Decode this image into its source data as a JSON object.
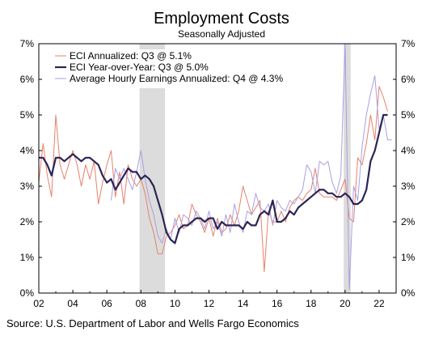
{
  "chart_data": {
    "type": "line",
    "title": "Employment Costs",
    "subtitle": "Seasonally Adjusted",
    "source": "Source: U.S. Department of Labor and Wells Fargo Economics",
    "xlim": [
      2002.0,
      2023.0
    ],
    "ylim": [
      0,
      7
    ],
    "x_ticks": [
      {
        "value": 2002,
        "label": "02"
      },
      {
        "value": 2004,
        "label": "04"
      },
      {
        "value": 2006,
        "label": "06"
      },
      {
        "value": 2008,
        "label": "08"
      },
      {
        "value": 2010,
        "label": "10"
      },
      {
        "value": 2012,
        "label": "12"
      },
      {
        "value": 2014,
        "label": "14"
      },
      {
        "value": 2016,
        "label": "16"
      },
      {
        "value": 2018,
        "label": "18"
      },
      {
        "value": 2020,
        "label": "20"
      },
      {
        "value": 2022,
        "label": "22"
      }
    ],
    "y_ticks": [
      {
        "value": 0,
        "label": "0%"
      },
      {
        "value": 1,
        "label": "1%"
      },
      {
        "value": 2,
        "label": "2%"
      },
      {
        "value": 3,
        "label": "3%"
      },
      {
        "value": 4,
        "label": "4%"
      },
      {
        "value": 5,
        "label": "5%"
      },
      {
        "value": 6,
        "label": "6%"
      },
      {
        "value": 7,
        "label": "7%"
      }
    ],
    "recessions": [
      {
        "start": 2007.92,
        "end": 2009.42
      },
      {
        "start": 2019.92,
        "end": 2020.33
      }
    ],
    "legend": {
      "position": "top-left"
    },
    "colors": {
      "eci_annualized": "#e8806a",
      "eci_yoy": "#2b2456",
      "ahe": "#a99fe0",
      "recession": "#dcdcdc"
    },
    "series": [
      {
        "name": "ECI Annualized: Q3 @ 5.1%",
        "key": "eci_annualized",
        "x": [
          2002.0,
          2002.25,
          2002.5,
          2002.75,
          2003.0,
          2003.25,
          2003.5,
          2003.75,
          2004.0,
          2004.25,
          2004.5,
          2004.75,
          2005.0,
          2005.25,
          2005.5,
          2005.75,
          2006.0,
          2006.25,
          2006.5,
          2006.75,
          2007.0,
          2007.25,
          2007.5,
          2007.75,
          2008.0,
          2008.25,
          2008.5,
          2008.75,
          2009.0,
          2009.25,
          2009.5,
          2009.75,
          2010.0,
          2010.25,
          2010.5,
          2010.75,
          2011.0,
          2011.25,
          2011.5,
          2011.75,
          2012.0,
          2012.25,
          2012.5,
          2012.75,
          2013.0,
          2013.25,
          2013.5,
          2013.75,
          2014.0,
          2014.25,
          2014.5,
          2014.75,
          2015.0,
          2015.25,
          2015.5,
          2015.75,
          2016.0,
          2016.25,
          2016.5,
          2016.75,
          2017.0,
          2017.25,
          2017.5,
          2017.75,
          2018.0,
          2018.25,
          2018.5,
          2018.75,
          2019.0,
          2019.25,
          2019.5,
          2019.75,
          2020.0,
          2020.25,
          2020.5,
          2020.75,
          2021.0,
          2021.25,
          2021.5,
          2021.75,
          2022.0,
          2022.25,
          2022.5
        ],
        "y": [
          3.1,
          4.2,
          3.3,
          2.7,
          5.0,
          3.6,
          3.2,
          3.6,
          4.0,
          3.6,
          3.0,
          3.6,
          3.2,
          3.7,
          2.5,
          3.1,
          3.6,
          4.0,
          2.7,
          3.4,
          2.5,
          3.6,
          3.2,
          3.0,
          3.2,
          2.8,
          2.1,
          1.7,
          1.1,
          1.1,
          1.6,
          1.7,
          1.9,
          2.2,
          1.8,
          1.9,
          2.5,
          2.2,
          2.0,
          1.7,
          2.1,
          1.6,
          2.1,
          1.7,
          1.8,
          2.2,
          1.9,
          2.3,
          3.0,
          2.6,
          2.2,
          2.4,
          2.6,
          0.6,
          2.3,
          2.0,
          2.0,
          2.3,
          2.0,
          2.4,
          2.6,
          2.7,
          2.6,
          2.8,
          2.9,
          3.5,
          2.8,
          2.7,
          2.7,
          2.7,
          2.6,
          2.9,
          3.2,
          2.1,
          2.0,
          3.8,
          3.6,
          4.2,
          5.0,
          4.3,
          5.8,
          5.5,
          5.1
        ]
      },
      {
        "name": "ECI Year-over-Year: Q3 @ 5.0%",
        "key": "eci_yoy",
        "x": [
          2002.0,
          2002.25,
          2002.5,
          2002.75,
          2003.0,
          2003.25,
          2003.5,
          2003.75,
          2004.0,
          2004.25,
          2004.5,
          2004.75,
          2005.0,
          2005.25,
          2005.5,
          2005.75,
          2006.0,
          2006.25,
          2006.5,
          2006.75,
          2007.0,
          2007.25,
          2007.5,
          2007.75,
          2008.0,
          2008.25,
          2008.5,
          2008.75,
          2009.0,
          2009.25,
          2009.5,
          2009.75,
          2010.0,
          2010.25,
          2010.5,
          2010.75,
          2011.0,
          2011.25,
          2011.5,
          2011.75,
          2012.0,
          2012.25,
          2012.5,
          2012.75,
          2013.0,
          2013.25,
          2013.5,
          2013.75,
          2014.0,
          2014.25,
          2014.5,
          2014.75,
          2015.0,
          2015.25,
          2015.5,
          2015.75,
          2016.0,
          2016.25,
          2016.5,
          2016.75,
          2017.0,
          2017.25,
          2017.5,
          2017.75,
          2018.0,
          2018.25,
          2018.5,
          2018.75,
          2019.0,
          2019.25,
          2019.5,
          2019.75,
          2020.0,
          2020.25,
          2020.5,
          2020.75,
          2021.0,
          2021.25,
          2021.5,
          2021.75,
          2022.0,
          2022.25,
          2022.5
        ],
        "y": [
          3.8,
          3.8,
          3.6,
          3.3,
          3.8,
          3.8,
          3.7,
          3.8,
          3.9,
          3.8,
          3.7,
          3.8,
          3.8,
          3.7,
          3.6,
          3.3,
          3.1,
          3.2,
          2.9,
          3.1,
          3.3,
          3.5,
          3.4,
          3.4,
          3.2,
          3.3,
          3.2,
          3.0,
          2.6,
          2.2,
          1.7,
          1.5,
          1.4,
          1.8,
          1.9,
          1.9,
          2.0,
          2.1,
          2.1,
          2.0,
          2.1,
          2.1,
          1.8,
          2.0,
          1.9,
          1.9,
          1.9,
          1.9,
          1.8,
          2.0,
          1.9,
          1.9,
          2.2,
          2.3,
          2.2,
          2.6,
          2.0,
          2.0,
          2.1,
          2.3,
          2.2,
          2.4,
          2.5,
          2.6,
          2.7,
          2.8,
          2.9,
          2.9,
          2.8,
          2.8,
          2.7,
          2.7,
          2.8,
          2.7,
          2.5,
          2.5,
          2.6,
          2.9,
          3.7,
          4.0,
          4.5,
          5.0,
          5.0
        ]
      },
      {
        "name": "Average Hourly Earnings Annualized: Q4 @ 4.3%",
        "key": "ahe",
        "x": [
          2006.25,
          2006.5,
          2006.75,
          2007.0,
          2007.25,
          2007.5,
          2007.75,
          2008.0,
          2008.25,
          2008.5,
          2008.75,
          2009.0,
          2009.25,
          2009.5,
          2009.75,
          2010.0,
          2010.25,
          2010.5,
          2010.75,
          2011.0,
          2011.25,
          2011.5,
          2011.75,
          2012.0,
          2012.25,
          2012.5,
          2012.75,
          2013.0,
          2013.25,
          2013.5,
          2013.75,
          2014.0,
          2014.25,
          2014.5,
          2014.75,
          2015.0,
          2015.25,
          2015.5,
          2015.75,
          2016.0,
          2016.25,
          2016.5,
          2016.75,
          2017.0,
          2017.25,
          2017.5,
          2017.75,
          2018.0,
          2018.25,
          2018.5,
          2018.75,
          2019.0,
          2019.25,
          2019.5,
          2019.75,
          2020.0,
          2020.25,
          2020.5,
          2020.75,
          2021.0,
          2021.25,
          2021.5,
          2021.75,
          2022.0,
          2022.25,
          2022.5,
          2022.75
        ],
        "y": [
          2.6,
          3.5,
          3.2,
          3.5,
          3.2,
          2.9,
          3.4,
          4.0,
          3.2,
          2.6,
          2.2,
          1.6,
          1.4,
          1.8,
          1.5,
          2.1,
          1.7,
          2.2,
          2.1,
          1.9,
          2.3,
          2.1,
          1.8,
          2.3,
          1.8,
          2.0,
          1.6,
          2.2,
          1.7,
          2.5,
          2.0,
          1.7,
          2.3,
          2.2,
          2.8,
          2.4,
          2.3,
          2.5,
          1.9,
          2.6,
          2.4,
          2.3,
          2.6,
          2.5,
          2.7,
          2.9,
          3.6,
          3.4,
          2.8,
          3.7,
          3.6,
          3.7,
          3.1,
          2.8,
          3.3,
          7.0,
          0.1,
          3.0,
          2.6,
          4.1,
          5.0,
          5.6,
          6.1,
          4.6,
          5.0,
          4.3,
          4.3
        ]
      }
    ]
  }
}
